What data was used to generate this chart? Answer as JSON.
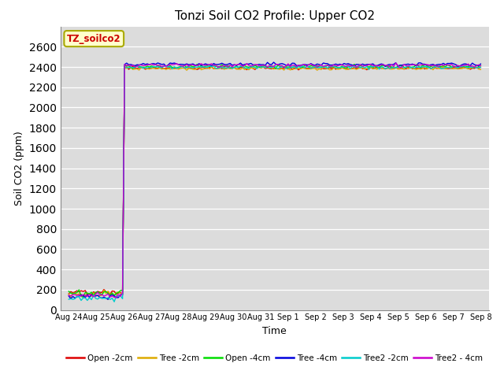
{
  "title": "Tonzi Soil CO2 Profile: Upper CO2",
  "xlabel": "Time",
  "ylabel": "Soil CO2 (ppm)",
  "ylim": [
    0,
    2800
  ],
  "yticks": [
    0,
    200,
    400,
    600,
    800,
    1000,
    1200,
    1400,
    1600,
    1800,
    2000,
    2200,
    2400,
    2600
  ],
  "background_color": "#dcdcdc",
  "fig_background": "#ffffff",
  "legend_label": "TZ_soilco2",
  "series_order": [
    "Open -2cm",
    "Tree -2cm",
    "Open -4cm",
    "Tree -4cm",
    "Tree2 -2cm",
    "Tree2 - 4cm"
  ],
  "series": {
    "Open -2cm": {
      "color": "#dd0000",
      "pre": 170,
      "post": 2390,
      "seed": 1
    },
    "Tree -2cm": {
      "color": "#ddaa00",
      "pre": 155,
      "post": 2385,
      "seed": 2
    },
    "Open -4cm": {
      "color": "#00dd00",
      "pre": 163,
      "post": 2405,
      "seed": 3
    },
    "Tree -4cm": {
      "color": "#0000dd",
      "pre": 130,
      "post": 2425,
      "seed": 4
    },
    "Tree2 -2cm": {
      "color": "#00cccc",
      "pre": 118,
      "post": 2398,
      "seed": 5
    },
    "Tree2 - 4cm": {
      "color": "#cc00cc",
      "pre": 143,
      "post": 2415,
      "seed": 6
    }
  },
  "x_labels": [
    "Aug 24",
    "Aug 25",
    "Aug 26",
    "Aug 27",
    "Aug 28",
    "Aug 29",
    "Aug 30",
    "Aug 31",
    "Sep 1",
    "Sep 2",
    "Sep 3",
    "Sep 4",
    "Sep 5",
    "Sep 6",
    "Sep 7",
    "Sep 8"
  ],
  "transition_idx": 2,
  "n_points_dense": 200
}
